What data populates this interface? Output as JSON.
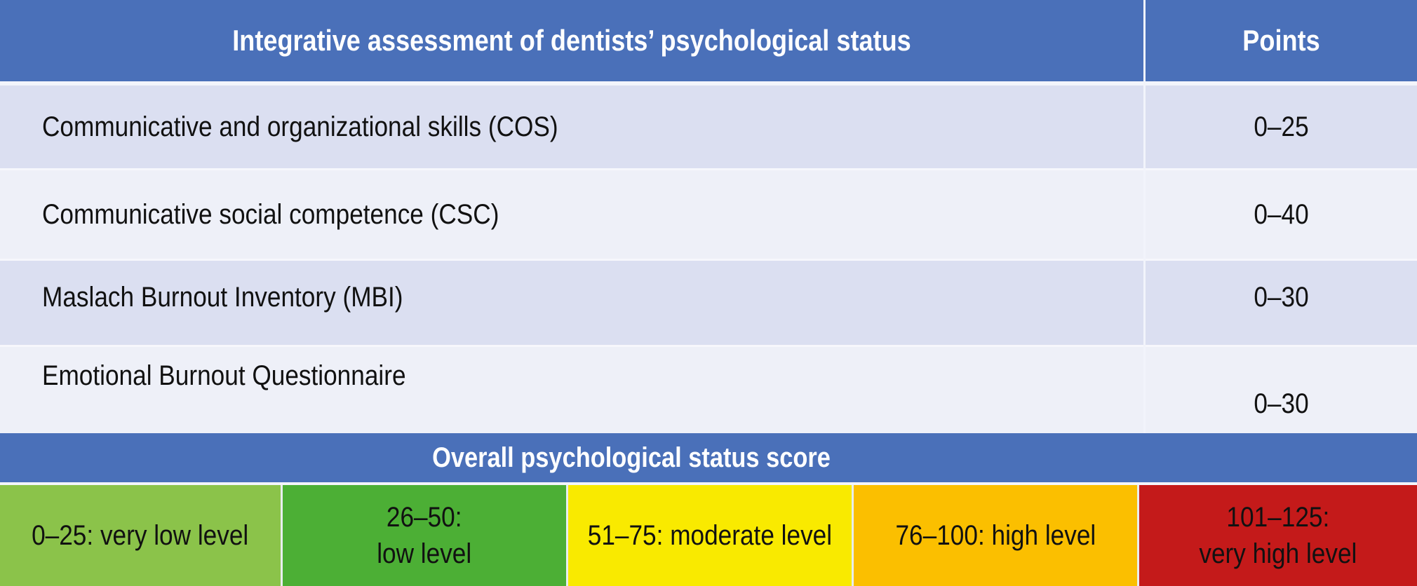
{
  "header": {
    "title": "Integrative assessment of dentists’ psychological status",
    "points_label": "Points"
  },
  "rows": [
    {
      "label": "Communicative and organizational skills (COS)",
      "points": "0–25"
    },
    {
      "label": "Communicative social competence (CSC)",
      "points": "0–40"
    },
    {
      "label": "Maslach Burnout Inventory (MBI)",
      "points": "0–30"
    },
    {
      "label": "Emotional Burnout Questionnaire",
      "points": "0–30"
    }
  ],
  "overall": {
    "label": "Overall psychological status score"
  },
  "levels": [
    {
      "line1": "0–25: very low level",
      "line2": "",
      "color": "#8bc34a"
    },
    {
      "line1": "26–50:",
      "line2": "low level",
      "color": "#4caf35"
    },
    {
      "line1": "51–75: moderate level",
      "line2": "",
      "color": "#f9ea00"
    },
    {
      "line1": "76–100: high level",
      "line2": "",
      "color": "#fbbf00"
    },
    {
      "line1": "101–125:",
      "line2": "very high level",
      "color": "#c41a1a"
    }
  ],
  "colors": {
    "header_bg": "#4a70b9",
    "row_dark": "#dbdff1",
    "row_light": "#eef0f8"
  }
}
